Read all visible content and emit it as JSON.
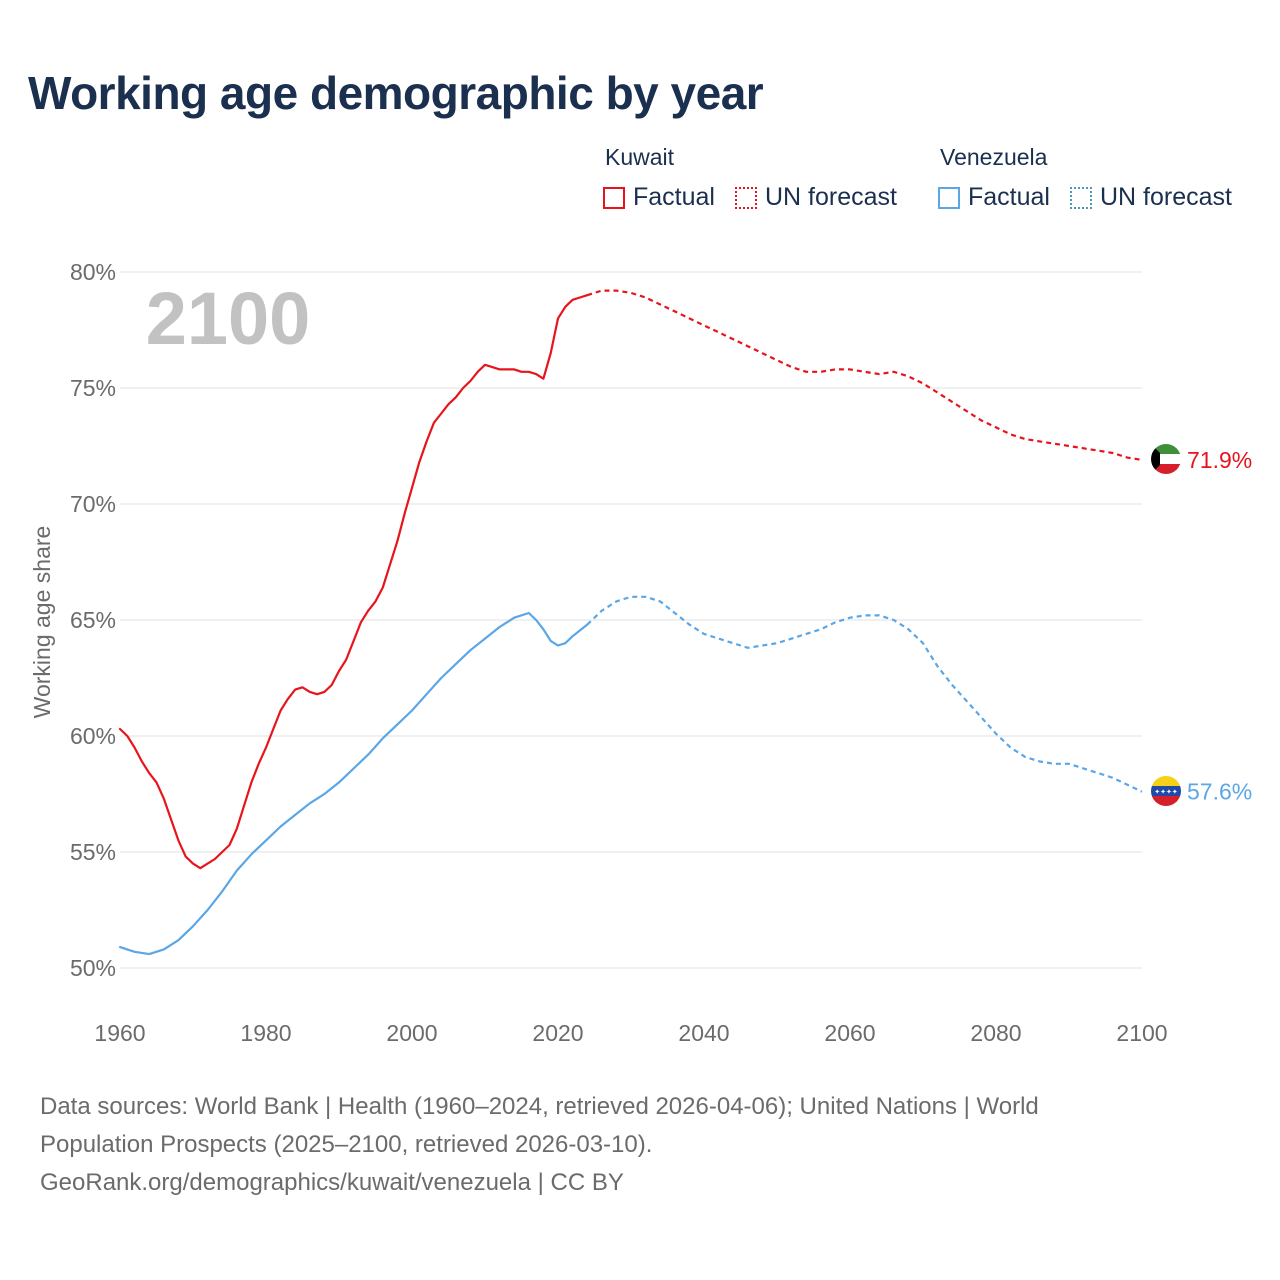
{
  "title": "Working age demographic by year",
  "legend": {
    "groups": [
      {
        "country": "Kuwait",
        "factual_label": "Factual",
        "forecast_label": "UN forecast",
        "color": "#e8141c"
      },
      {
        "country": "Venezuela",
        "factual_label": "Factual",
        "forecast_label": "UN forecast",
        "color": "#5aa6e6"
      }
    ]
  },
  "year_watermark": "2100",
  "footer": {
    "sources": "Data sources: World Bank | Health (1960–2024, retrieved 2026-04-06); United Nations | World Population Prospects (2025–2100, retrieved 2026-03-10).",
    "credit": "GeoRank.org/demographics/kuwait/venezuela | CC BY"
  },
  "chart_data": {
    "type": "line",
    "title": "Working age demographic by year",
    "ylabel": "Working age share",
    "xlabel": "",
    "xlim": [
      1960,
      2100
    ],
    "ylim": [
      50,
      80
    ],
    "x_ticks": [
      "1960",
      "1980",
      "2000",
      "2020",
      "2040",
      "2060",
      "2080",
      "2100"
    ],
    "y_ticks": [
      "50%",
      "55%",
      "60%",
      "65%",
      "70%",
      "75%",
      "80%"
    ],
    "grid": true,
    "factual_end_year": 2024,
    "series": [
      {
        "name": "Kuwait",
        "color": "#e8141c",
        "end_label": "71.9%",
        "points": [
          [
            1960,
            60.3
          ],
          [
            1961,
            60.0
          ],
          [
            1962,
            59.5
          ],
          [
            1963,
            58.9
          ],
          [
            1964,
            58.4
          ],
          [
            1965,
            58.0
          ],
          [
            1966,
            57.3
          ],
          [
            1967,
            56.4
          ],
          [
            1968,
            55.5
          ],
          [
            1969,
            54.8
          ],
          [
            1970,
            54.5
          ],
          [
            1971,
            54.3
          ],
          [
            1972,
            54.5
          ],
          [
            1973,
            54.7
          ],
          [
            1974,
            55.0
          ],
          [
            1975,
            55.3
          ],
          [
            1976,
            56.0
          ],
          [
            1977,
            57.0
          ],
          [
            1978,
            58.0
          ],
          [
            1979,
            58.8
          ],
          [
            1980,
            59.5
          ],
          [
            1981,
            60.3
          ],
          [
            1982,
            61.1
          ],
          [
            1983,
            61.6
          ],
          [
            1984,
            62.0
          ],
          [
            1985,
            62.1
          ],
          [
            1986,
            61.9
          ],
          [
            1987,
            61.8
          ],
          [
            1988,
            61.9
          ],
          [
            1989,
            62.2
          ],
          [
            1990,
            62.8
          ],
          [
            1991,
            63.3
          ],
          [
            1992,
            64.1
          ],
          [
            1993,
            64.9
          ],
          [
            1994,
            65.4
          ],
          [
            1995,
            65.8
          ],
          [
            1996,
            66.4
          ],
          [
            1997,
            67.4
          ],
          [
            1998,
            68.4
          ],
          [
            1999,
            69.6
          ],
          [
            2000,
            70.7
          ],
          [
            2001,
            71.8
          ],
          [
            2002,
            72.7
          ],
          [
            2003,
            73.5
          ],
          [
            2004,
            73.9
          ],
          [
            2005,
            74.3
          ],
          [
            2006,
            74.6
          ],
          [
            2007,
            75.0
          ],
          [
            2008,
            75.3
          ],
          [
            2009,
            75.7
          ],
          [
            2010,
            76.0
          ],
          [
            2011,
            75.9
          ],
          [
            2012,
            75.8
          ],
          [
            2013,
            75.8
          ],
          [
            2014,
            75.8
          ],
          [
            2015,
            75.7
          ],
          [
            2016,
            75.7
          ],
          [
            2017,
            75.6
          ],
          [
            2018,
            75.4
          ],
          [
            2019,
            76.5
          ],
          [
            2020,
            78.0
          ],
          [
            2021,
            78.5
          ],
          [
            2022,
            78.8
          ],
          [
            2023,
            78.9
          ],
          [
            2024,
            79.0
          ],
          [
            2025,
            79.1
          ],
          [
            2026,
            79.2
          ],
          [
            2028,
            79.2
          ],
          [
            2030,
            79.1
          ],
          [
            2032,
            78.9
          ],
          [
            2034,
            78.6
          ],
          [
            2036,
            78.3
          ],
          [
            2038,
            78.0
          ],
          [
            2040,
            77.7
          ],
          [
            2042,
            77.4
          ],
          [
            2044,
            77.1
          ],
          [
            2046,
            76.8
          ],
          [
            2048,
            76.5
          ],
          [
            2050,
            76.2
          ],
          [
            2052,
            75.9
          ],
          [
            2054,
            75.7
          ],
          [
            2056,
            75.7
          ],
          [
            2058,
            75.8
          ],
          [
            2060,
            75.8
          ],
          [
            2062,
            75.7
          ],
          [
            2064,
            75.6
          ],
          [
            2066,
            75.7
          ],
          [
            2068,
            75.5
          ],
          [
            2070,
            75.2
          ],
          [
            2072,
            74.8
          ],
          [
            2074,
            74.4
          ],
          [
            2076,
            74.0
          ],
          [
            2078,
            73.6
          ],
          [
            2080,
            73.3
          ],
          [
            2082,
            73.0
          ],
          [
            2084,
            72.8
          ],
          [
            2086,
            72.7
          ],
          [
            2088,
            72.6
          ],
          [
            2090,
            72.5
          ],
          [
            2092,
            72.4
          ],
          [
            2094,
            72.3
          ],
          [
            2096,
            72.2
          ],
          [
            2098,
            72.0
          ],
          [
            2100,
            71.9
          ]
        ]
      },
      {
        "name": "Venezuela",
        "color": "#5aa6e6",
        "end_label": "57.6%",
        "points": [
          [
            1960,
            50.9
          ],
          [
            1962,
            50.7
          ],
          [
            1964,
            50.6
          ],
          [
            1966,
            50.8
          ],
          [
            1968,
            51.2
          ],
          [
            1970,
            51.8
          ],
          [
            1972,
            52.5
          ],
          [
            1974,
            53.3
          ],
          [
            1976,
            54.2
          ],
          [
            1978,
            54.9
          ],
          [
            1980,
            55.5
          ],
          [
            1982,
            56.1
          ],
          [
            1984,
            56.6
          ],
          [
            1986,
            57.1
          ],
          [
            1988,
            57.5
          ],
          [
            1990,
            58.0
          ],
          [
            1992,
            58.6
          ],
          [
            1994,
            59.2
          ],
          [
            1996,
            59.9
          ],
          [
            1998,
            60.5
          ],
          [
            2000,
            61.1
          ],
          [
            2002,
            61.8
          ],
          [
            2004,
            62.5
          ],
          [
            2006,
            63.1
          ],
          [
            2008,
            63.7
          ],
          [
            2010,
            64.2
          ],
          [
            2012,
            64.7
          ],
          [
            2014,
            65.1
          ],
          [
            2016,
            65.3
          ],
          [
            2017,
            65.0
          ],
          [
            2018,
            64.6
          ],
          [
            2019,
            64.1
          ],
          [
            2020,
            63.9
          ],
          [
            2021,
            64.0
          ],
          [
            2022,
            64.3
          ],
          [
            2024,
            64.8
          ],
          [
            2026,
            65.4
          ],
          [
            2028,
            65.8
          ],
          [
            2030,
            66.0
          ],
          [
            2032,
            66.0
          ],
          [
            2034,
            65.8
          ],
          [
            2036,
            65.3
          ],
          [
            2038,
            64.8
          ],
          [
            2040,
            64.4
          ],
          [
            2042,
            64.2
          ],
          [
            2044,
            64.0
          ],
          [
            2046,
            63.8
          ],
          [
            2048,
            63.9
          ],
          [
            2050,
            64.0
          ],
          [
            2052,
            64.2
          ],
          [
            2054,
            64.4
          ],
          [
            2056,
            64.6
          ],
          [
            2058,
            64.9
          ],
          [
            2060,
            65.1
          ],
          [
            2062,
            65.2
          ],
          [
            2064,
            65.2
          ],
          [
            2066,
            65.0
          ],
          [
            2068,
            64.6
          ],
          [
            2070,
            64.0
          ],
          [
            2072,
            63.0
          ],
          [
            2074,
            62.2
          ],
          [
            2076,
            61.5
          ],
          [
            2078,
            60.8
          ],
          [
            2080,
            60.1
          ],
          [
            2082,
            59.5
          ],
          [
            2084,
            59.1
          ],
          [
            2086,
            58.9
          ],
          [
            2088,
            58.8
          ],
          [
            2090,
            58.8
          ],
          [
            2092,
            58.6
          ],
          [
            2094,
            58.4
          ],
          [
            2096,
            58.2
          ],
          [
            2098,
            57.9
          ],
          [
            2100,
            57.6
          ]
        ]
      }
    ]
  }
}
